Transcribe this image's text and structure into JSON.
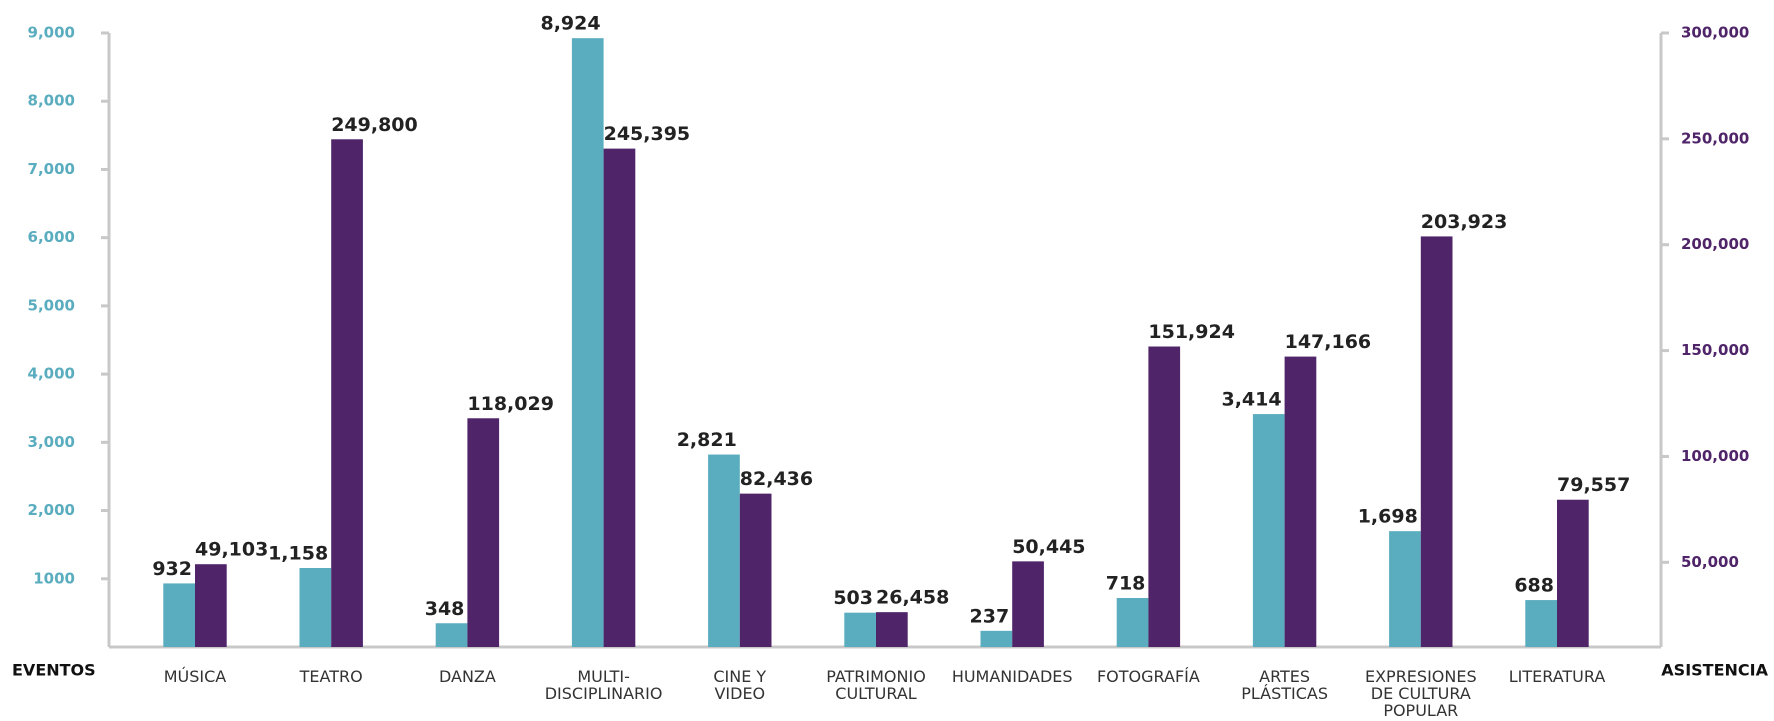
{
  "chart_data": {
    "type": "bar",
    "categories": [
      [
        "MÚSICA"
      ],
      [
        "TEATRO"
      ],
      [
        "DANZA"
      ],
      [
        "MULTI-",
        "DISCIPLINARIO"
      ],
      [
        "CINE Y",
        "VIDEO"
      ],
      [
        "PATRIMONIO",
        "CULTURAL"
      ],
      [
        "HUMANIDADES"
      ],
      [
        "FOTOGRAFÍA"
      ],
      [
        "ARTES",
        "PLÁSTICAS"
      ],
      [
        "EXPRESIONES",
        "DE CULTURA",
        "POPULAR"
      ],
      [
        "LITERATURA"
      ]
    ],
    "series": [
      {
        "name": "EVENTOS",
        "color": "#5aacbf",
        "axis": "y",
        "values": [
          932,
          1158,
          348,
          8924,
          2821,
          503,
          237,
          718,
          3414,
          1698,
          688
        ],
        "value_labels": [
          "932",
          "1,158",
          "348",
          "8,924",
          "2,821",
          "503",
          "237",
          "718",
          "3,414",
          "1,698",
          "688"
        ]
      },
      {
        "name": "ASISTENCIA",
        "color": "#4f2469",
        "axis": "y2",
        "values": [
          49103,
          249800,
          118029,
          245395,
          82436,
          26458,
          50445,
          151924,
          147166,
          203923,
          79557
        ],
        "value_labels": [
          "49,103",
          "249,800",
          "118,029",
          "245,395",
          "82,436",
          "26,458",
          "50,445",
          "151,924",
          "147,166",
          "203,923",
          "79,557"
        ]
      }
    ],
    "ylim": [
      0,
      9000
    ],
    "yticks": [
      1000,
      {
        "value": 2000,
        "label": "2,000"
      },
      {
        "value": 3000,
        "label": "3,000"
      },
      {
        "value": 4000,
        "label": "4,000"
      },
      {
        "value": 5000,
        "label": "5,000"
      },
      {
        "value": 6000,
        "label": "6,000"
      },
      {
        "value": 7000,
        "label": "7,000"
      },
      {
        "value": 8000,
        "label": "8,000"
      },
      {
        "value": 9000,
        "label": "9,000"
      }
    ],
    "y2lim": [
      10000,
      300000
    ],
    "y2ticks": [
      {
        "value": 50000,
        "label": "50,000"
      },
      {
        "value": 100000,
        "label": "100,000"
      },
      {
        "value": 150000,
        "label": "150,000"
      },
      {
        "value": 200000,
        "label": "200,000"
      },
      {
        "value": 250000,
        "label": "250,000"
      },
      {
        "value": 300000,
        "label": "300,000"
      }
    ]
  }
}
